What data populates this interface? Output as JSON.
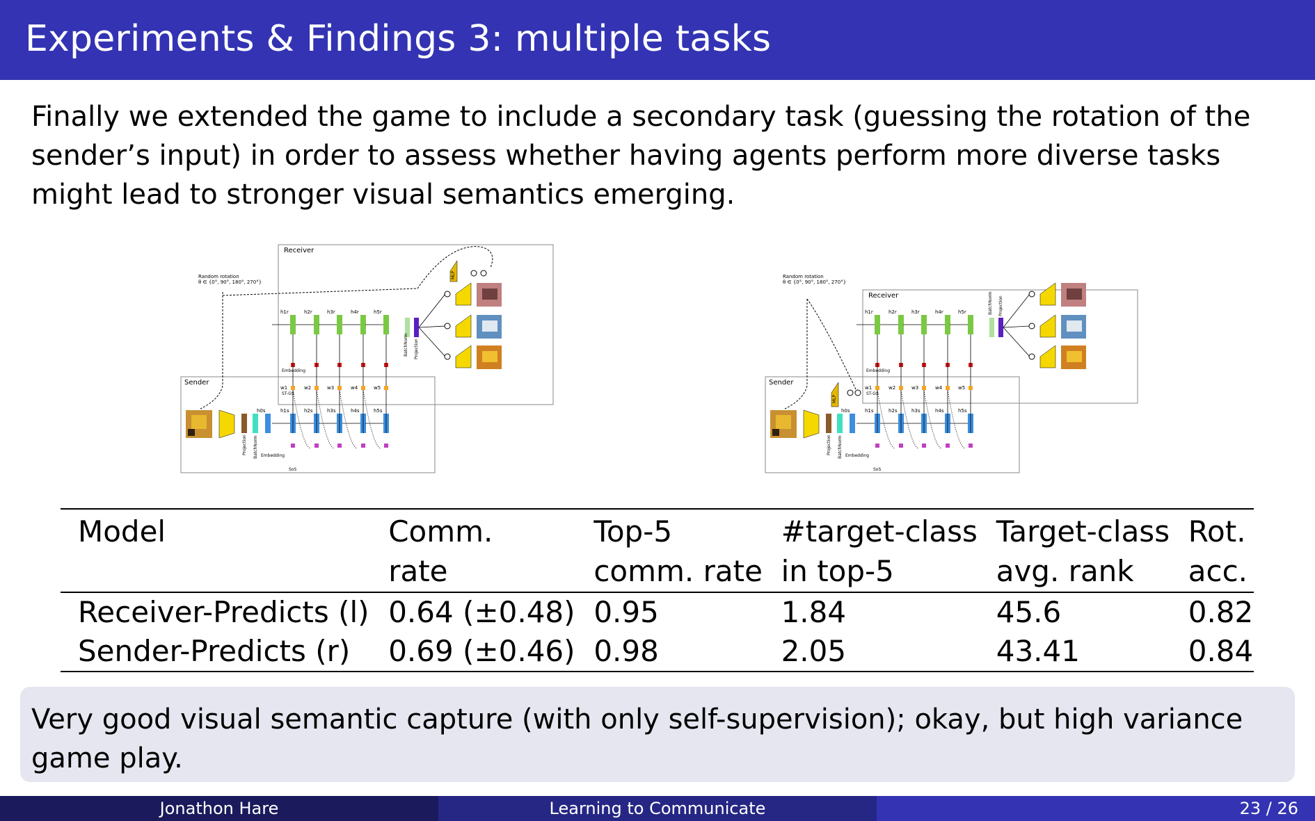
{
  "slide": {
    "title": "Experiments & Findings 3: multiple tasks",
    "intro": "Finally we extended the game to include a secondary task (guessing the rotation of the sender’s input) in order to assess whether having agents perform more diverse tasks might lead to stronger visual semantics emerging."
  },
  "figures": {
    "receiver_label": "Receiver",
    "sender_label": "Sender",
    "rotation_label": "Random rotation",
    "rotation_set": "θ ∈ {0°, 90°, 180°, 270°}",
    "mlp_label": "MLP",
    "vgg_label": "VGG16 relu 7",
    "embedding_label": "Embedding",
    "stgs_label": "ST-GS",
    "sos_label": "SoS",
    "batchnorm_label": "BatchNorm",
    "projection_label": "Projection",
    "receiver_hidden": [
      "h1r",
      "h2r",
      "h3r",
      "h4r",
      "h5r"
    ],
    "sender_hidden": [
      "h0s",
      "h1s",
      "h2s",
      "h3s",
      "h4s",
      "h5s"
    ],
    "words": [
      "w1",
      "w2",
      "w3",
      "w4",
      "w5"
    ],
    "colors": {
      "lstm_green": "#7ac943",
      "lstm_blue": "#3b8ee0",
      "embedding_red": "#d7191c",
      "word_orange": "#f5a623",
      "sos_magenta": "#c040c0",
      "vgg_yellow": "#f5d800",
      "mlp_gold": "#e5b800",
      "projection_brown": "#8b5a2b",
      "batchnorm_teal": "#40e0c0",
      "out_purple": "#5a20c0"
    }
  },
  "table": {
    "headers": [
      [
        "Model",
        ""
      ],
      [
        "Comm.",
        "rate"
      ],
      [
        "Top-5",
        "comm. rate"
      ],
      [
        "#target-class",
        "in top-5"
      ],
      [
        "Target-class",
        "avg. rank"
      ],
      [
        "Rot.",
        "acc."
      ]
    ],
    "rows": [
      [
        "Receiver-Predicts (l)",
        "0.64 (±0.48)",
        "0.95",
        "1.84",
        "45.6",
        "0.82"
      ],
      [
        "Sender-Predicts (r)",
        "0.69 (±0.46)",
        "0.98",
        "2.05",
        "43.41",
        "0.84"
      ]
    ]
  },
  "conclusion": "Very good visual semantic capture (with only self-supervision); okay, but high variance game play.",
  "footer": {
    "author": "Jonathon Hare",
    "talk_title": "Learning to Communicate",
    "page": "23 / 26"
  }
}
